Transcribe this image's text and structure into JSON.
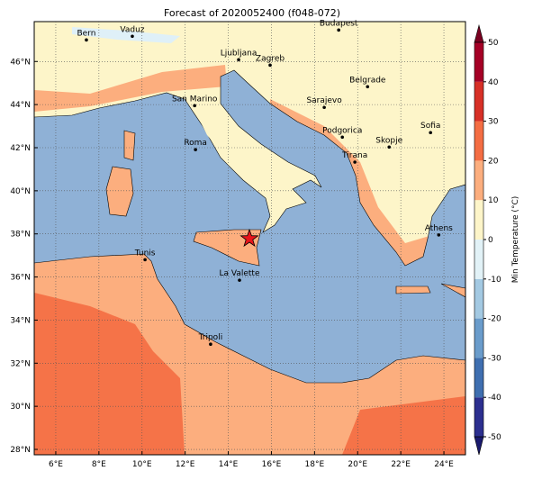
{
  "title": "Forecast of 2020052400 (f048-072)",
  "map": {
    "xlim": [
      5,
      25
    ],
    "ylim": [
      27.75,
      47.85
    ],
    "xticks": [
      {
        "value": 6,
        "label": "6°E"
      },
      {
        "value": 8,
        "label": "8°E"
      },
      {
        "value": 10,
        "label": "10°E"
      },
      {
        "value": 12,
        "label": "12°E"
      },
      {
        "value": 14,
        "label": "14°E"
      },
      {
        "value": 16,
        "label": "16°E"
      },
      {
        "value": 18,
        "label": "18°E"
      },
      {
        "value": 20,
        "label": "20°E"
      },
      {
        "value": 22,
        "label": "22°E"
      },
      {
        "value": 24,
        "label": "24°E"
      }
    ],
    "yticks": [
      {
        "value": 28,
        "label": "28°N"
      },
      {
        "value": 30,
        "label": "30°N"
      },
      {
        "value": 32,
        "label": "32°N"
      },
      {
        "value": 34,
        "label": "34°N"
      },
      {
        "value": 36,
        "label": "36°N"
      },
      {
        "value": 38,
        "label": "38°N"
      },
      {
        "value": 40,
        "label": "40°N"
      },
      {
        "value": 42,
        "label": "42°N"
      },
      {
        "value": 44,
        "label": "44°N"
      },
      {
        "value": 46,
        "label": "46°N"
      }
    ],
    "grid": true,
    "cities": [
      {
        "name": "Bern",
        "lon": 7.42,
        "lat": 47.0
      },
      {
        "name": "Vaduz",
        "lon": 9.55,
        "lat": 47.17
      },
      {
        "name": "Budapest",
        "lon": 19.12,
        "lat": 47.46
      },
      {
        "name": "Ljubljana",
        "lon": 14.48,
        "lat": 46.08
      },
      {
        "name": "Zagreb",
        "lon": 15.94,
        "lat": 45.83
      },
      {
        "name": "Belgrade",
        "lon": 20.46,
        "lat": 44.83
      },
      {
        "name": "San Marino",
        "lon": 12.44,
        "lat": 43.95
      },
      {
        "name": "Sarajevo",
        "lon": 18.45,
        "lat": 43.87
      },
      {
        "name": "Sofia",
        "lon": 23.38,
        "lat": 42.7
      },
      {
        "name": "Podgorica",
        "lon": 19.29,
        "lat": 42.49
      },
      {
        "name": "Skopje",
        "lon": 21.46,
        "lat": 42.03
      },
      {
        "name": "Roma",
        "lon": 12.48,
        "lat": 41.91
      },
      {
        "name": "Tirana",
        "lon": 19.87,
        "lat": 41.33
      },
      {
        "name": "Athens",
        "lon": 23.76,
        "lat": 37.95
      },
      {
        "name": "Tunis",
        "lon": 10.14,
        "lat": 36.8
      },
      {
        "name": "La Valette",
        "lon": 14.52,
        "lat": 35.85
      },
      {
        "name": "Tripoli",
        "lon": 13.18,
        "lat": 32.88
      }
    ],
    "marker": {
      "lon": 14.98,
      "lat": 37.78,
      "color": "#e8151b"
    }
  },
  "colorbar": {
    "label": "Min Temperature (°C)",
    "ticks": [
      -50,
      -40,
      -30,
      -20,
      -10,
      0,
      10,
      20,
      30,
      40,
      50
    ],
    "colors": [
      "#2c2f8f",
      "#3f6fb0",
      "#6a9ccb",
      "#a3c9e2",
      "#e2f2f7",
      "#fdf5c9",
      "#fcae7e",
      "#f46d43",
      "#d73027",
      "#a50026"
    ],
    "under": "#1a1a6e",
    "over": "#7a0020"
  }
}
